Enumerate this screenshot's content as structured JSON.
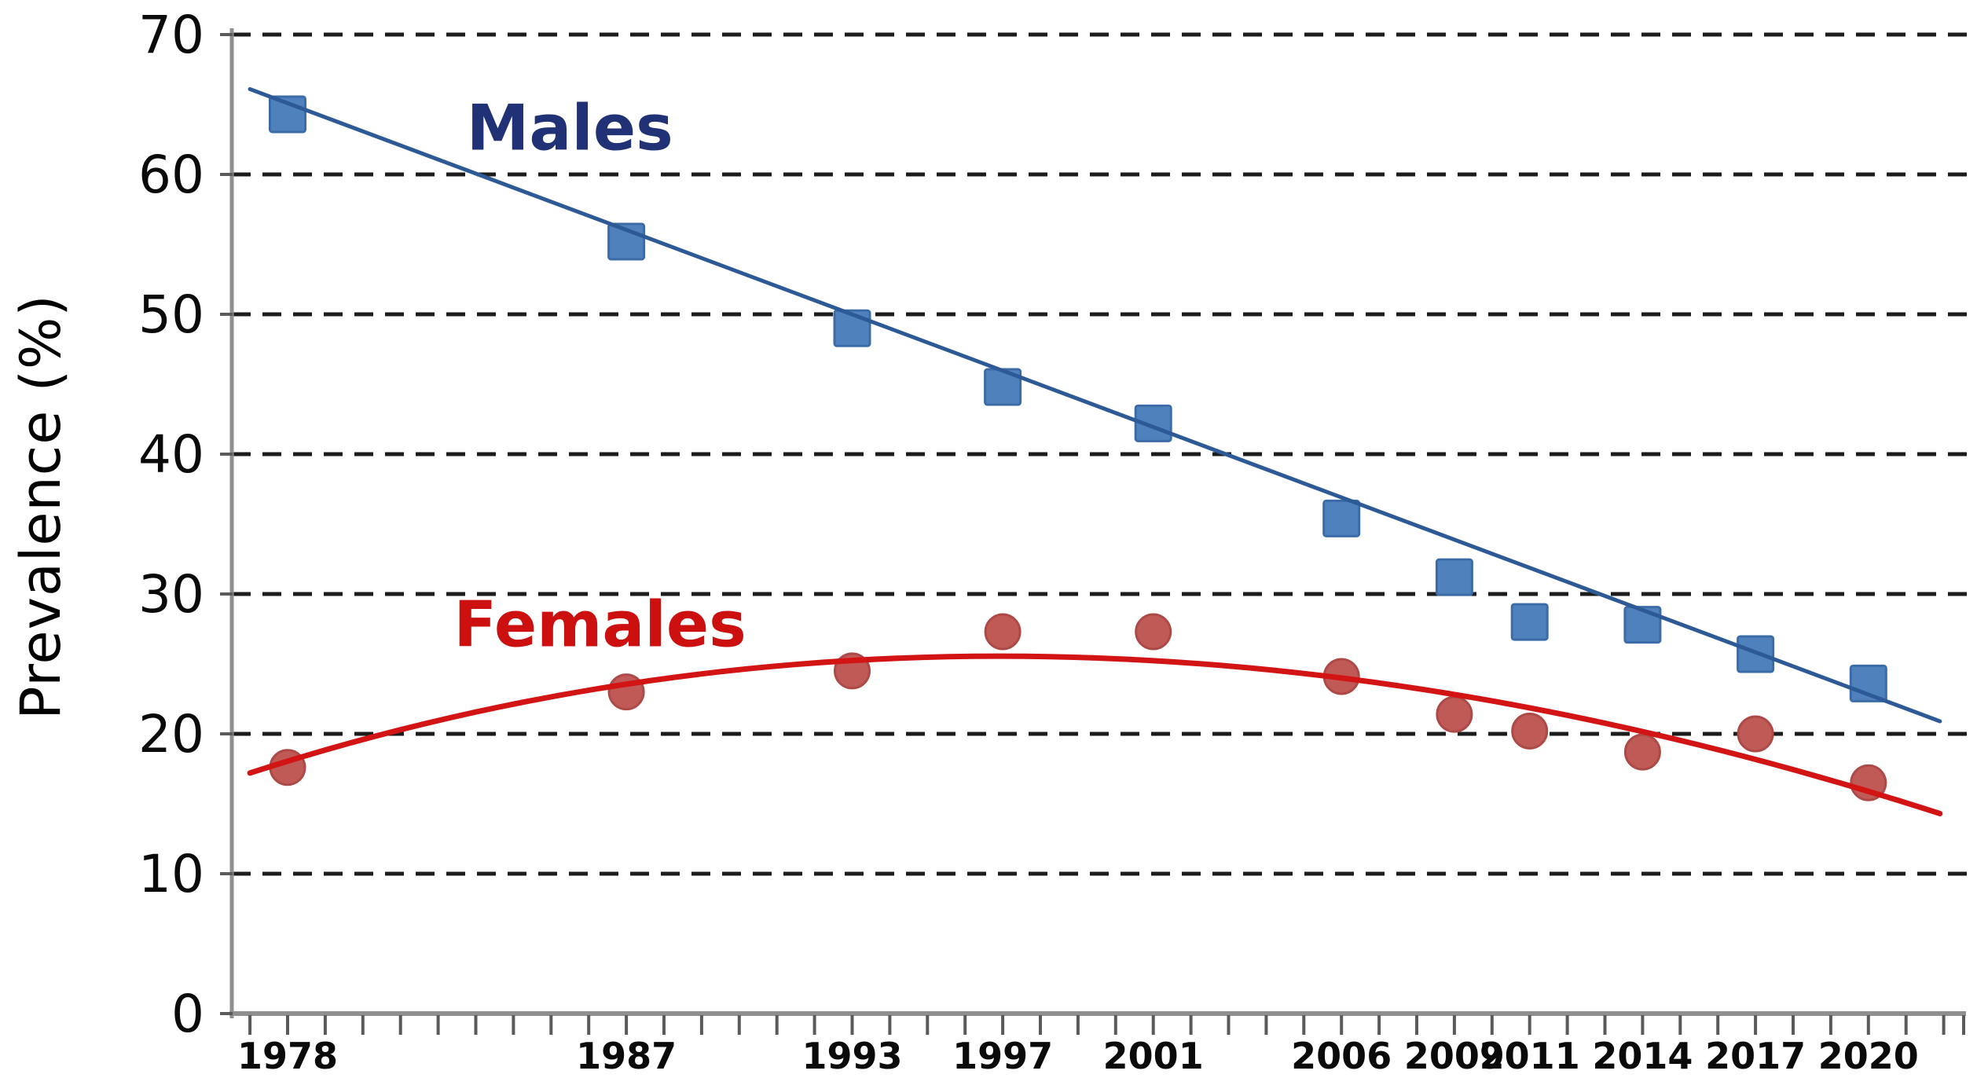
{
  "figure": {
    "background": "#ffffff",
    "text_color": "#000000"
  },
  "chart_data": {
    "type": "scatter",
    "title": "",
    "xlabel": "",
    "ylabel": "Prevalence (%)",
    "ylim": [
      0,
      70
    ],
    "yticks": [
      0,
      10,
      20,
      30,
      40,
      50,
      60,
      70
    ],
    "xlim": [
      1976.5,
      2022.6
    ],
    "xticks_minor": "yearly from 1977 to 2022",
    "labeled_years": [
      1978,
      1987,
      1993,
      1997,
      2001,
      2006,
      2009,
      2011,
      2014,
      2017,
      2020
    ],
    "grid": {
      "horizontal": true,
      "style": "dashed",
      "color": "#1c1c1c"
    },
    "legend_position": "inline annotations",
    "axis_color": "#8f8f8f",
    "tick_color": "#5a5a5a",
    "series": [
      {
        "name": "Males",
        "marker": "square",
        "marker_color": "#4f81bd",
        "marker_edge": "#3b6ca8",
        "trend_color": "#2d5a96",
        "years": [
          1978,
          1987,
          1993,
          1997,
          2001,
          2006,
          2009,
          2011,
          2014,
          2017,
          2020
        ],
        "values": [
          64.3,
          55.2,
          49.0,
          44.8,
          42.2,
          35.4,
          31.2,
          28.0,
          27.8,
          25.7,
          23.6
        ],
        "trend": {
          "shape": "linear",
          "points": [
            [
              1977.0,
              66.1
            ],
            [
              2021.9,
              20.9
            ]
          ]
        }
      },
      {
        "name": "Females",
        "marker": "circle",
        "marker_color": "#bf5a57",
        "marker_edge": "#ad4a48",
        "trend_color": "#d31414",
        "years": [
          1978,
          1987,
          1993,
          1997,
          2001,
          2006,
          2009,
          2011,
          2014,
          2017,
          2020
        ],
        "values": [
          17.6,
          23.0,
          24.5,
          27.3,
          27.3,
          24.1,
          21.4,
          20.2,
          18.7,
          20.0,
          16.5
        ],
        "trend": {
          "shape": "quadratic",
          "points": [
            [
              1977.0,
              17.2
            ],
            [
              1998.6,
              25.5
            ],
            [
              2021.9,
              14.3
            ]
          ]
        }
      }
    ],
    "annotations": [
      {
        "text": "Males",
        "x": 1985.5,
        "y": 63.3,
        "color": "#203175"
      },
      {
        "text": "Females",
        "x": 1986.3,
        "y": 27.8,
        "color": "#cc1010"
      }
    ]
  }
}
